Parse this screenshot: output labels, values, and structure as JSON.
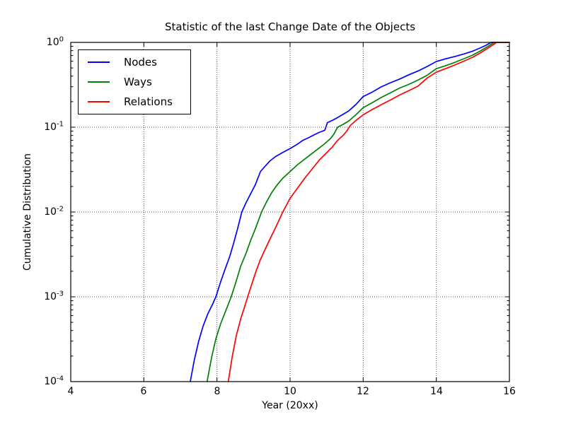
{
  "title": "Statistic of the last Change Date of the Objects",
  "axes": {
    "x_label": "Year (20xx)",
    "y_label": "Cumulative Distribution",
    "x_ticks": [
      "4",
      "6",
      "8",
      "10",
      "12",
      "14",
      "16"
    ],
    "y_ticks": [
      {
        "base": "10",
        "exp": "0"
      },
      {
        "base": "10",
        "exp": "-1"
      },
      {
        "base": "10",
        "exp": "-2"
      },
      {
        "base": "10",
        "exp": "-3"
      },
      {
        "base": "10",
        "exp": "-4"
      }
    ]
  },
  "chart_data": {
    "type": "line",
    "title": "Statistic of the last Change Date of the Objects",
    "xlabel": "Year (20xx)",
    "ylabel": "Cumulative Distribution",
    "xlim": [
      4,
      16
    ],
    "ylim": [
      0.0001,
      1
    ],
    "yscale": "log",
    "grid": true,
    "grid_style": "dotted",
    "legend_position": "upper left",
    "x_major": [
      4,
      6,
      8,
      10,
      12,
      14,
      16
    ],
    "y_major": [
      1,
      0.1,
      0.01,
      0.001,
      0.0001
    ],
    "series": [
      {
        "name": "Nodes",
        "color": "#0000ff",
        "points": [
          [
            7.27,
            0.0001
          ],
          [
            7.38,
            0.00018
          ],
          [
            7.5,
            0.0003
          ],
          [
            7.62,
            0.00045
          ],
          [
            7.75,
            0.00063
          ],
          [
            7.87,
            0.0008
          ],
          [
            7.97,
            0.001
          ],
          [
            8.1,
            0.0015
          ],
          [
            8.22,
            0.0021
          ],
          [
            8.35,
            0.003
          ],
          [
            8.45,
            0.0042
          ],
          [
            8.57,
            0.0065
          ],
          [
            8.68,
            0.01
          ],
          [
            8.8,
            0.013
          ],
          [
            8.94,
            0.017
          ],
          [
            9.05,
            0.021
          ],
          [
            9.19,
            0.03
          ],
          [
            9.3,
            0.034
          ],
          [
            9.45,
            0.04
          ],
          [
            9.6,
            0.045
          ],
          [
            9.75,
            0.049
          ],
          [
            10.0,
            0.056
          ],
          [
            10.2,
            0.063
          ],
          [
            10.35,
            0.07
          ],
          [
            10.5,
            0.075
          ],
          [
            10.65,
            0.081
          ],
          [
            10.8,
            0.087
          ],
          [
            10.95,
            0.092
          ],
          [
            11.02,
            0.113
          ],
          [
            11.15,
            0.12
          ],
          [
            11.3,
            0.13
          ],
          [
            11.45,
            0.142
          ],
          [
            11.6,
            0.155
          ],
          [
            11.8,
            0.185
          ],
          [
            12.0,
            0.23
          ],
          [
            12.25,
            0.26
          ],
          [
            12.5,
            0.3
          ],
          [
            12.75,
            0.335
          ],
          [
            13.0,
            0.37
          ],
          [
            13.25,
            0.415
          ],
          [
            13.5,
            0.46
          ],
          [
            13.75,
            0.52
          ],
          [
            14.0,
            0.595
          ],
          [
            14.25,
            0.64
          ],
          [
            14.5,
            0.68
          ],
          [
            14.75,
            0.73
          ],
          [
            15.0,
            0.79
          ],
          [
            15.2,
            0.86
          ],
          [
            15.35,
            0.92
          ],
          [
            15.5,
            1.0
          ],
          [
            16.0,
            1.0
          ]
        ]
      },
      {
        "name": "Ways",
        "color": "#008000",
        "points": [
          [
            7.73,
            0.0001
          ],
          [
            7.85,
            0.00019
          ],
          [
            7.97,
            0.00032
          ],
          [
            8.1,
            0.00048
          ],
          [
            8.25,
            0.0007
          ],
          [
            8.39,
            0.001
          ],
          [
            8.52,
            0.0015
          ],
          [
            8.65,
            0.0023
          ],
          [
            8.8,
            0.0033
          ],
          [
            8.92,
            0.0046
          ],
          [
            9.06,
            0.0065
          ],
          [
            9.22,
            0.01
          ],
          [
            9.35,
            0.013
          ],
          [
            9.5,
            0.017
          ],
          [
            9.65,
            0.021
          ],
          [
            9.8,
            0.025
          ],
          [
            10.0,
            0.03
          ],
          [
            10.2,
            0.036
          ],
          [
            10.4,
            0.042
          ],
          [
            10.6,
            0.049
          ],
          [
            10.8,
            0.057
          ],
          [
            10.95,
            0.064
          ],
          [
            11.1,
            0.073
          ],
          [
            11.2,
            0.083
          ],
          [
            11.3,
            0.1
          ],
          [
            11.45,
            0.108
          ],
          [
            11.6,
            0.118
          ],
          [
            11.8,
            0.14
          ],
          [
            12.0,
            0.17
          ],
          [
            12.25,
            0.195
          ],
          [
            12.5,
            0.225
          ],
          [
            12.75,
            0.255
          ],
          [
            13.0,
            0.29
          ],
          [
            13.25,
            0.32
          ],
          [
            13.5,
            0.36
          ],
          [
            13.75,
            0.41
          ],
          [
            14.0,
            0.49
          ],
          [
            14.25,
            0.53
          ],
          [
            14.5,
            0.58
          ],
          [
            14.75,
            0.64
          ],
          [
            15.0,
            0.71
          ],
          [
            15.2,
            0.79
          ],
          [
            15.4,
            0.89
          ],
          [
            15.58,
            1.0
          ],
          [
            16.0,
            1.0
          ]
        ]
      },
      {
        "name": "Relations",
        "color": "#ff0000",
        "points": [
          [
            8.31,
            0.0001
          ],
          [
            8.42,
            0.0002
          ],
          [
            8.53,
            0.00035
          ],
          [
            8.65,
            0.00055
          ],
          [
            8.75,
            0.00075
          ],
          [
            8.84,
            0.001
          ],
          [
            8.95,
            0.0014
          ],
          [
            9.05,
            0.0019
          ],
          [
            9.18,
            0.0027
          ],
          [
            9.3,
            0.0035
          ],
          [
            9.45,
            0.0048
          ],
          [
            9.6,
            0.0065
          ],
          [
            9.8,
            0.01
          ],
          [
            10.0,
            0.0145
          ],
          [
            10.2,
            0.019
          ],
          [
            10.4,
            0.025
          ],
          [
            10.6,
            0.032
          ],
          [
            10.8,
            0.041
          ],
          [
            11.0,
            0.05
          ],
          [
            11.15,
            0.058
          ],
          [
            11.3,
            0.07
          ],
          [
            11.45,
            0.08
          ],
          [
            11.55,
            0.09
          ],
          [
            11.65,
            0.105
          ],
          [
            11.8,
            0.12
          ],
          [
            12.0,
            0.14
          ],
          [
            12.25,
            0.162
          ],
          [
            12.5,
            0.185
          ],
          [
            12.75,
            0.21
          ],
          [
            13.0,
            0.24
          ],
          [
            13.25,
            0.27
          ],
          [
            13.5,
            0.305
          ],
          [
            13.75,
            0.38
          ],
          [
            14.0,
            0.445
          ],
          [
            14.25,
            0.49
          ],
          [
            14.5,
            0.54
          ],
          [
            14.75,
            0.6
          ],
          [
            15.0,
            0.67
          ],
          [
            15.2,
            0.75
          ],
          [
            15.4,
            0.85
          ],
          [
            15.65,
            1.0
          ],
          [
            16.0,
            1.0
          ]
        ]
      }
    ]
  },
  "colors": {
    "nodes": "#0000ff",
    "ways": "#008000",
    "relations": "#ff0000",
    "grid": "#555555",
    "axis": "#000000"
  }
}
